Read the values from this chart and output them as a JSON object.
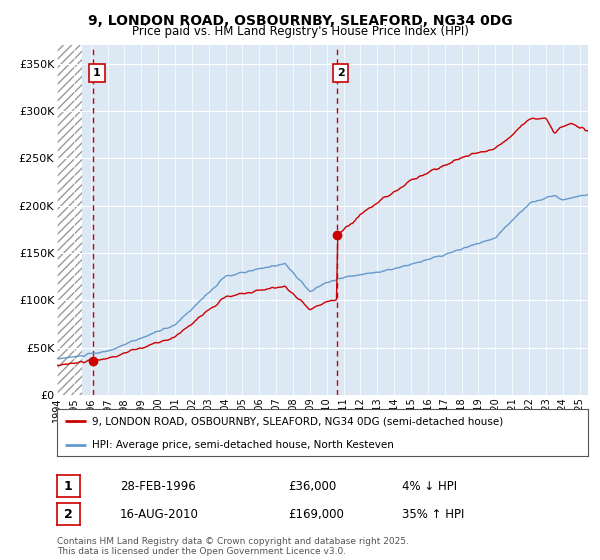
{
  "title": "9, LONDON ROAD, OSBOURNBY, SLEAFORD, NG34 0DG",
  "subtitle": "Price paid vs. HM Land Registry's House Price Index (HPI)",
  "bg_color": "#dce9f5",
  "grid_color": "#ffffff",
  "red_line_color": "#cc0000",
  "blue_line_color": "#6699cc",
  "dashed_line_color": "#cc0000",
  "ylabel_ticks": [
    "£0",
    "£50K",
    "£100K",
    "£150K",
    "£200K",
    "£250K",
    "£300K",
    "£350K"
  ],
  "ytick_vals": [
    0,
    50000,
    100000,
    150000,
    200000,
    250000,
    300000,
    350000
  ],
  "ylim": [
    0,
    370000
  ],
  "xlim_start": 1994.0,
  "xlim_end": 2025.5,
  "sale1_year": 1996.16,
  "sale1_price": 36000,
  "sale2_year": 2010.62,
  "sale2_price": 169000,
  "legend1": "9, LONDON ROAD, OSBOURNBY, SLEAFORD, NG34 0DG (semi-detached house)",
  "legend2": "HPI: Average price, semi-detached house, North Kesteven",
  "table_row1_num": "1",
  "table_row1_date": "28-FEB-1996",
  "table_row1_price": "£36,000",
  "table_row1_hpi": "4% ↓ HPI",
  "table_row2_num": "2",
  "table_row2_date": "16-AUG-2010",
  "table_row2_price": "£169,000",
  "table_row2_hpi": "35% ↑ HPI",
  "footer_line1": "Contains HM Land Registry data © Crown copyright and database right 2025.",
  "footer_line2": "This data is licensed under the Open Government Licence v3.0.",
  "hatch_end_year": 1995.5
}
